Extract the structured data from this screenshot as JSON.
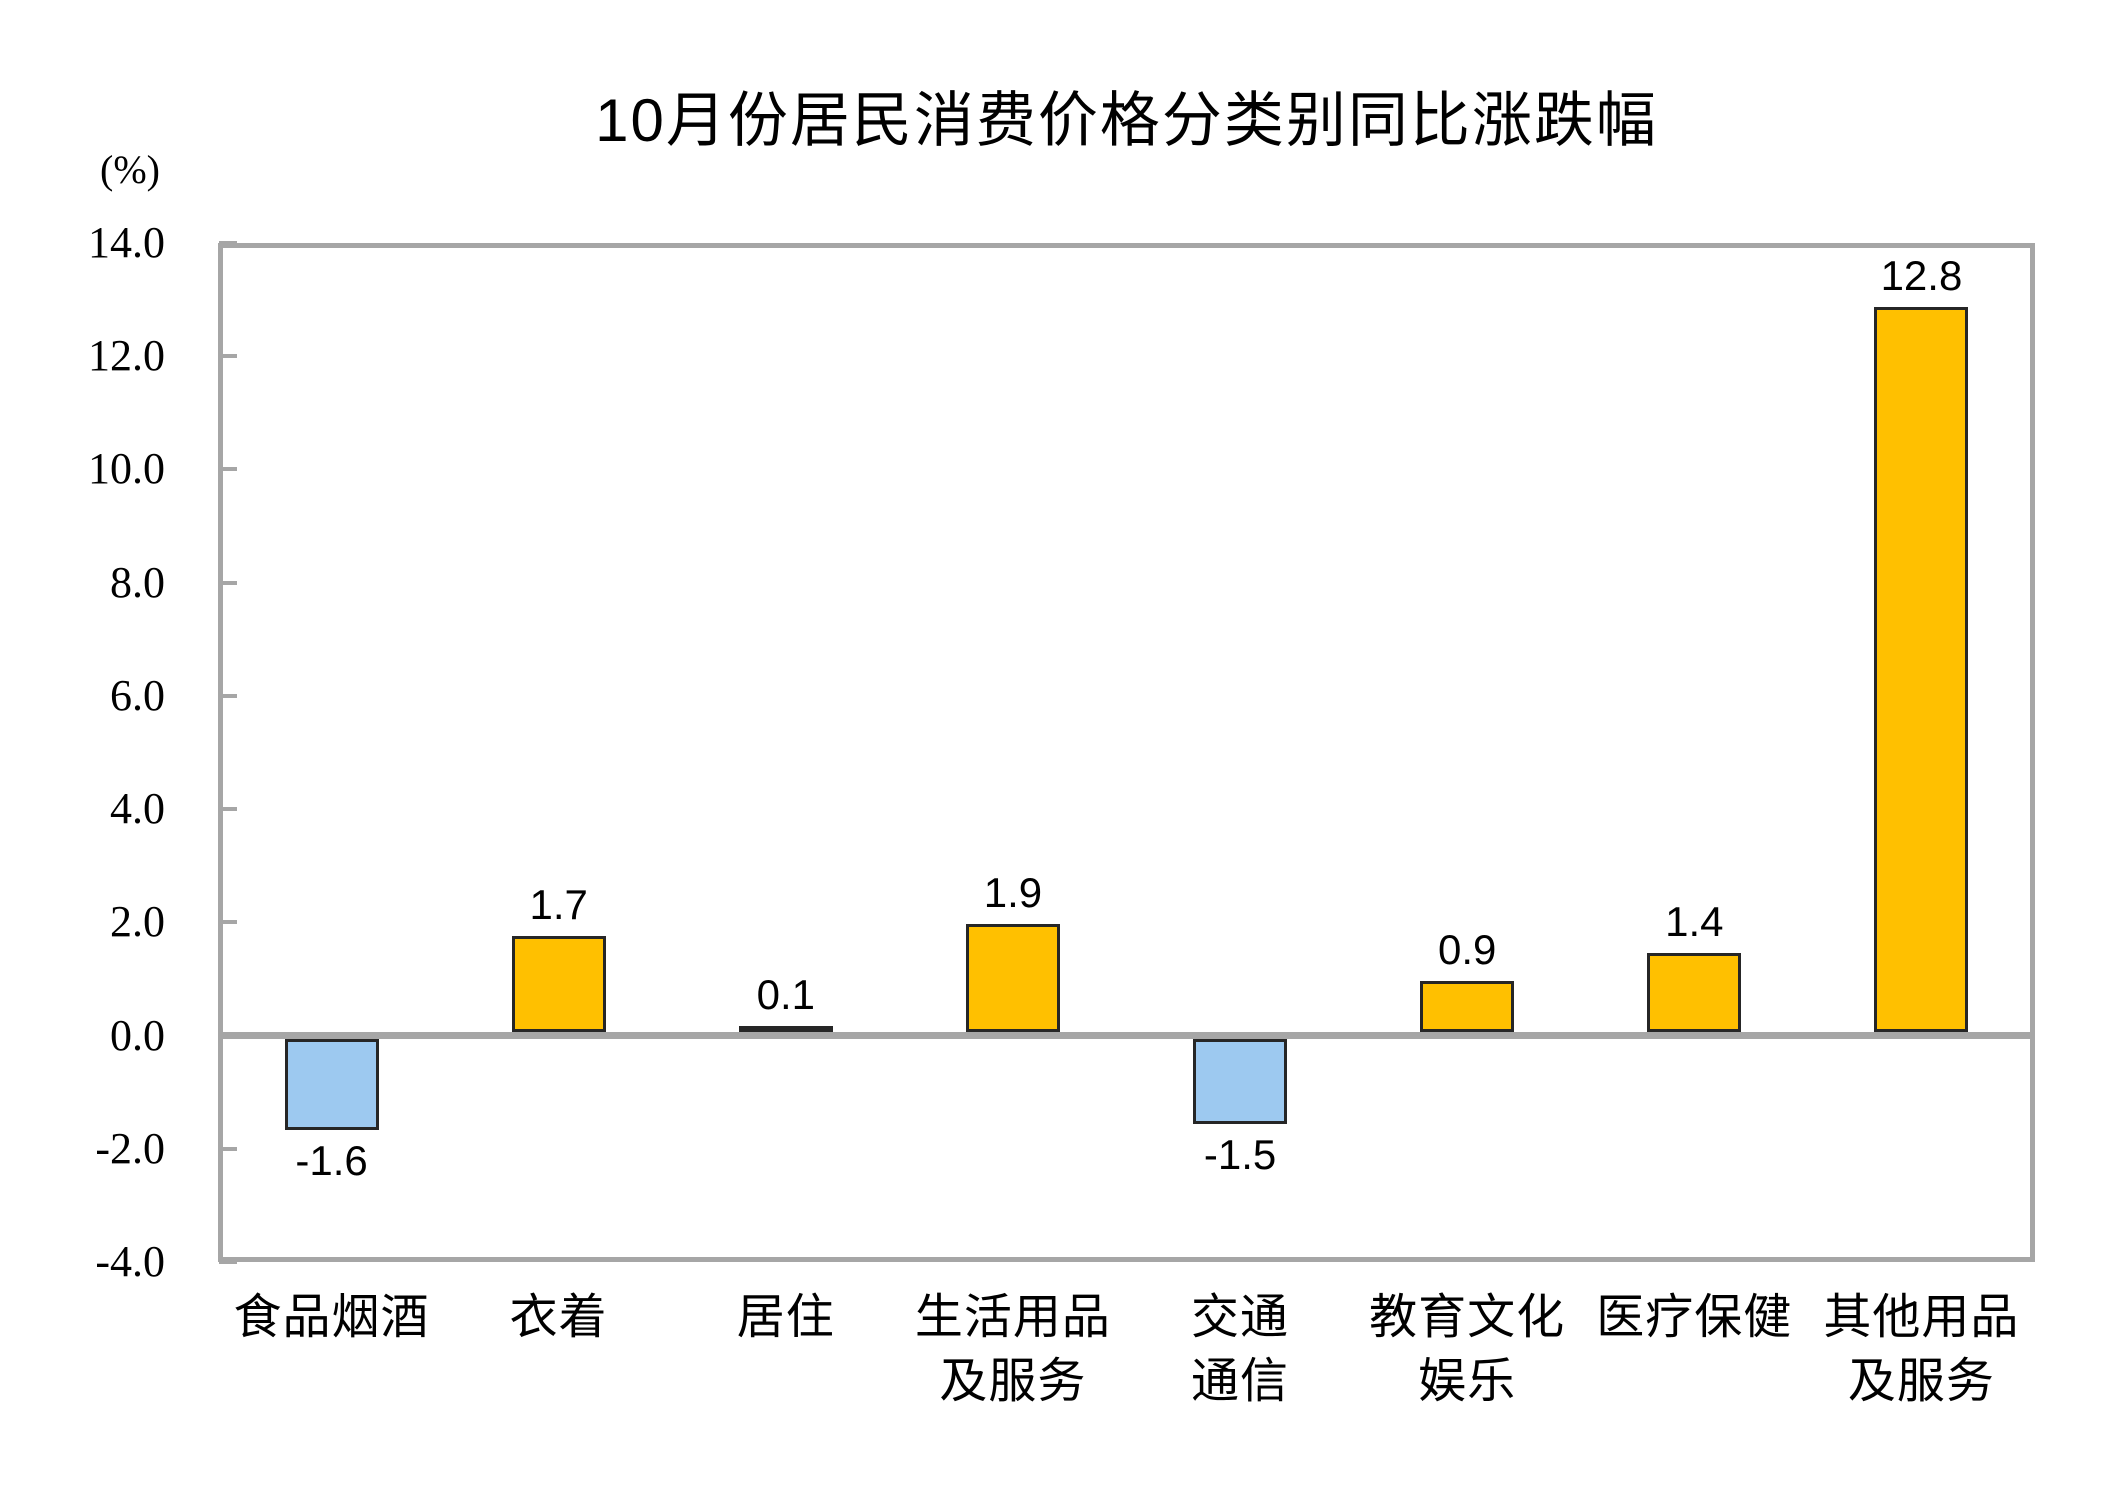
{
  "chart_data": {
    "type": "bar",
    "title": "10月份居民消费价格分类别同比涨跌幅",
    "unit_label": "(%)",
    "categories": [
      "食品烟酒",
      "衣着",
      "居住",
      "生活用品及服务",
      "交通通信",
      "教育文化娱乐",
      "医疗保健",
      "其他用品及服务"
    ],
    "category_lines": [
      [
        "食品烟酒"
      ],
      [
        "衣着"
      ],
      [
        "居住"
      ],
      [
        "生活用品",
        "及服务"
      ],
      [
        "交通",
        "通信"
      ],
      [
        "教育文化",
        "娱乐"
      ],
      [
        "医疗保健"
      ],
      [
        "其他用品",
        "及服务"
      ]
    ],
    "values": [
      -1.6,
      1.7,
      0.1,
      1.9,
      -1.5,
      0.9,
      1.4,
      12.8
    ],
    "data_labels": [
      "-1.6",
      "1.7",
      "0.1",
      "1.9",
      "-1.5",
      "0.9",
      "1.4",
      "12.8"
    ],
    "ylabel": "(%)",
    "xlabel": "",
    "ylim": [
      -4.0,
      14.0
    ],
    "ytick_interval": 2.0,
    "yticks": [
      "14.0",
      "12.0",
      "10.0",
      "8.0",
      "6.0",
      "4.0",
      "2.0",
      "0.0",
      "-2.0",
      "-4.0"
    ],
    "grid": false,
    "legend_position": "none",
    "colors": {
      "positive_bar": "#FFC000",
      "negative_bar": "#9DC9F0",
      "bar_border": "#262626",
      "axis_gray": "#A6A6A6",
      "text": "#000000"
    }
  }
}
